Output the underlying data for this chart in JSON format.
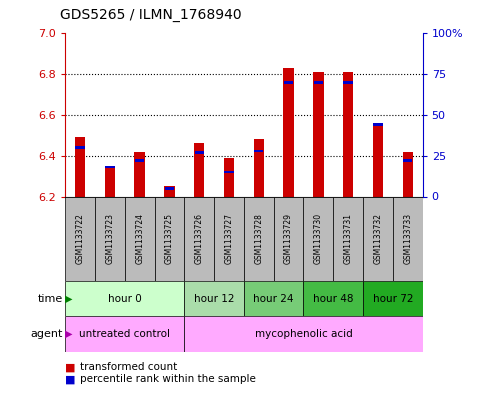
{
  "title": "GDS5265 / ILMN_1768940",
  "samples": [
    "GSM1133722",
    "GSM1133723",
    "GSM1133724",
    "GSM1133725",
    "GSM1133726",
    "GSM1133727",
    "GSM1133728",
    "GSM1133729",
    "GSM1133730",
    "GSM1133731",
    "GSM1133732",
    "GSM1133733"
  ],
  "transformed_count": [
    6.49,
    6.35,
    6.42,
    6.25,
    6.46,
    6.39,
    6.48,
    6.83,
    6.81,
    6.81,
    6.56,
    6.42
  ],
  "percentile_rank": [
    30,
    18,
    22,
    5,
    27,
    15,
    28,
    70,
    70,
    70,
    44,
    22
  ],
  "ylim_left": [
    6.2,
    7.0
  ],
  "ylim_right": [
    0,
    100
  ],
  "yticks_left": [
    6.2,
    6.4,
    6.6,
    6.8,
    7.0
  ],
  "yticks_right": [
    0,
    25,
    50,
    75,
    100
  ],
  "ytick_labels_right": [
    "0",
    "25",
    "50",
    "75",
    "100%"
  ],
  "bar_bottom": 6.2,
  "bar_color_red": "#cc0000",
  "bar_color_blue": "#0000cc",
  "time_groups": [
    {
      "label": "hour 0",
      "start": 0,
      "end": 4,
      "color": "#ccffcc"
    },
    {
      "label": "hour 12",
      "start": 4,
      "end": 6,
      "color": "#aaddaa"
    },
    {
      "label": "hour 24",
      "start": 6,
      "end": 8,
      "color": "#77cc77"
    },
    {
      "label": "hour 48",
      "start": 8,
      "end": 10,
      "color": "#44bb44"
    },
    {
      "label": "hour 72",
      "start": 10,
      "end": 12,
      "color": "#22aa22"
    }
  ],
  "agent_groups": [
    {
      "label": "untreated control",
      "start": 0,
      "end": 4,
      "color": "#ffaaff"
    },
    {
      "label": "mycophenolic acid",
      "start": 4,
      "end": 12,
      "color": "#ffaaff"
    }
  ],
  "legend_red": "transformed count",
  "legend_blue": "percentile rank within the sample",
  "bar_width": 0.35,
  "bg_color": "#ffffff",
  "tick_color_left": "#cc0000",
  "tick_color_right": "#0000cc",
  "sample_bg": "#bbbbbb"
}
